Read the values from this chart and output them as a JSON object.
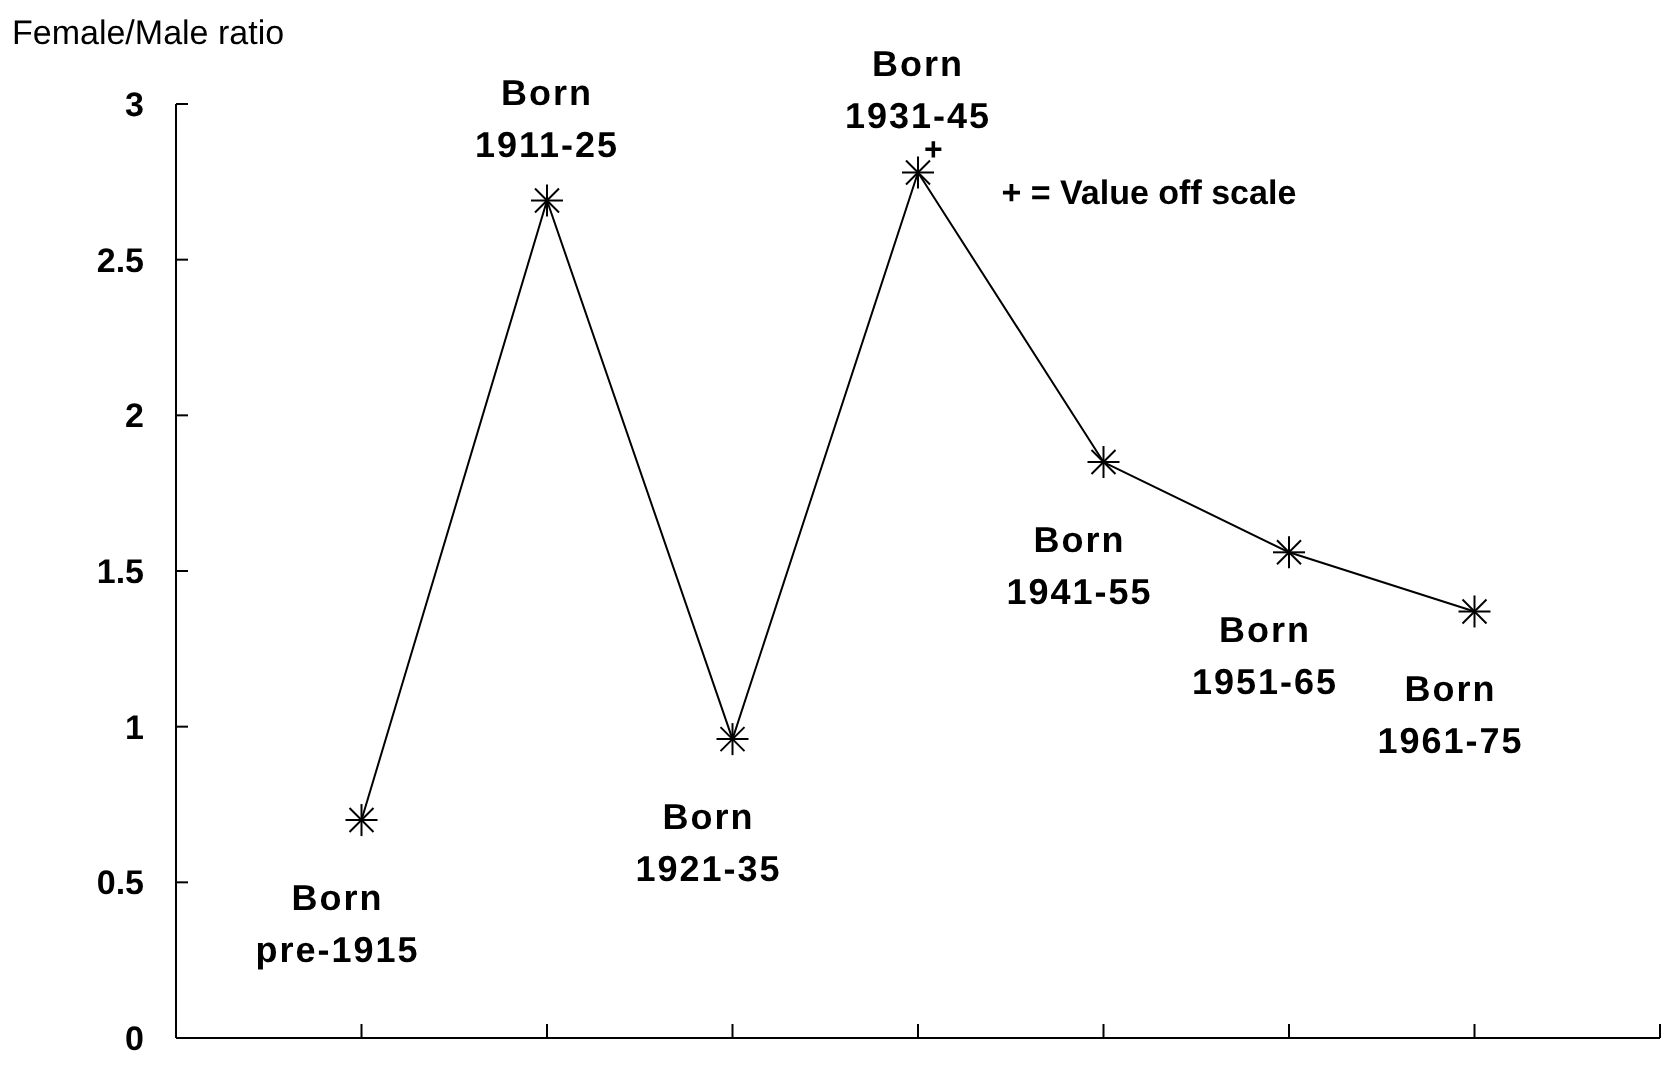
{
  "chart_data": {
    "type": "line",
    "ylabel": "Female/Male ratio",
    "categories": [
      null,
      null,
      null,
      null,
      null,
      null,
      null
    ],
    "ylim": [
      0,
      3
    ],
    "yticks": [
      0,
      0.5,
      1,
      1.5,
      2,
      2.5,
      3
    ],
    "series": [
      {
        "color": "#000000",
        "values": [
          0.7,
          2.69,
          0.96,
          2.78,
          1.85,
          1.56,
          1.37
        ]
      }
    ],
    "marker": "cross",
    "line_style": "solid",
    "grid": false,
    "annotations": [
      "Born\npre-1915",
      "Born\n1911-25",
      "Born\n1921-35",
      "Born\n1931-45",
      "Born\n1941-55",
      "Born\n1951-65",
      "Born\n1961-75",
      "+",
      "+ = Value off scale"
    ]
  }
}
